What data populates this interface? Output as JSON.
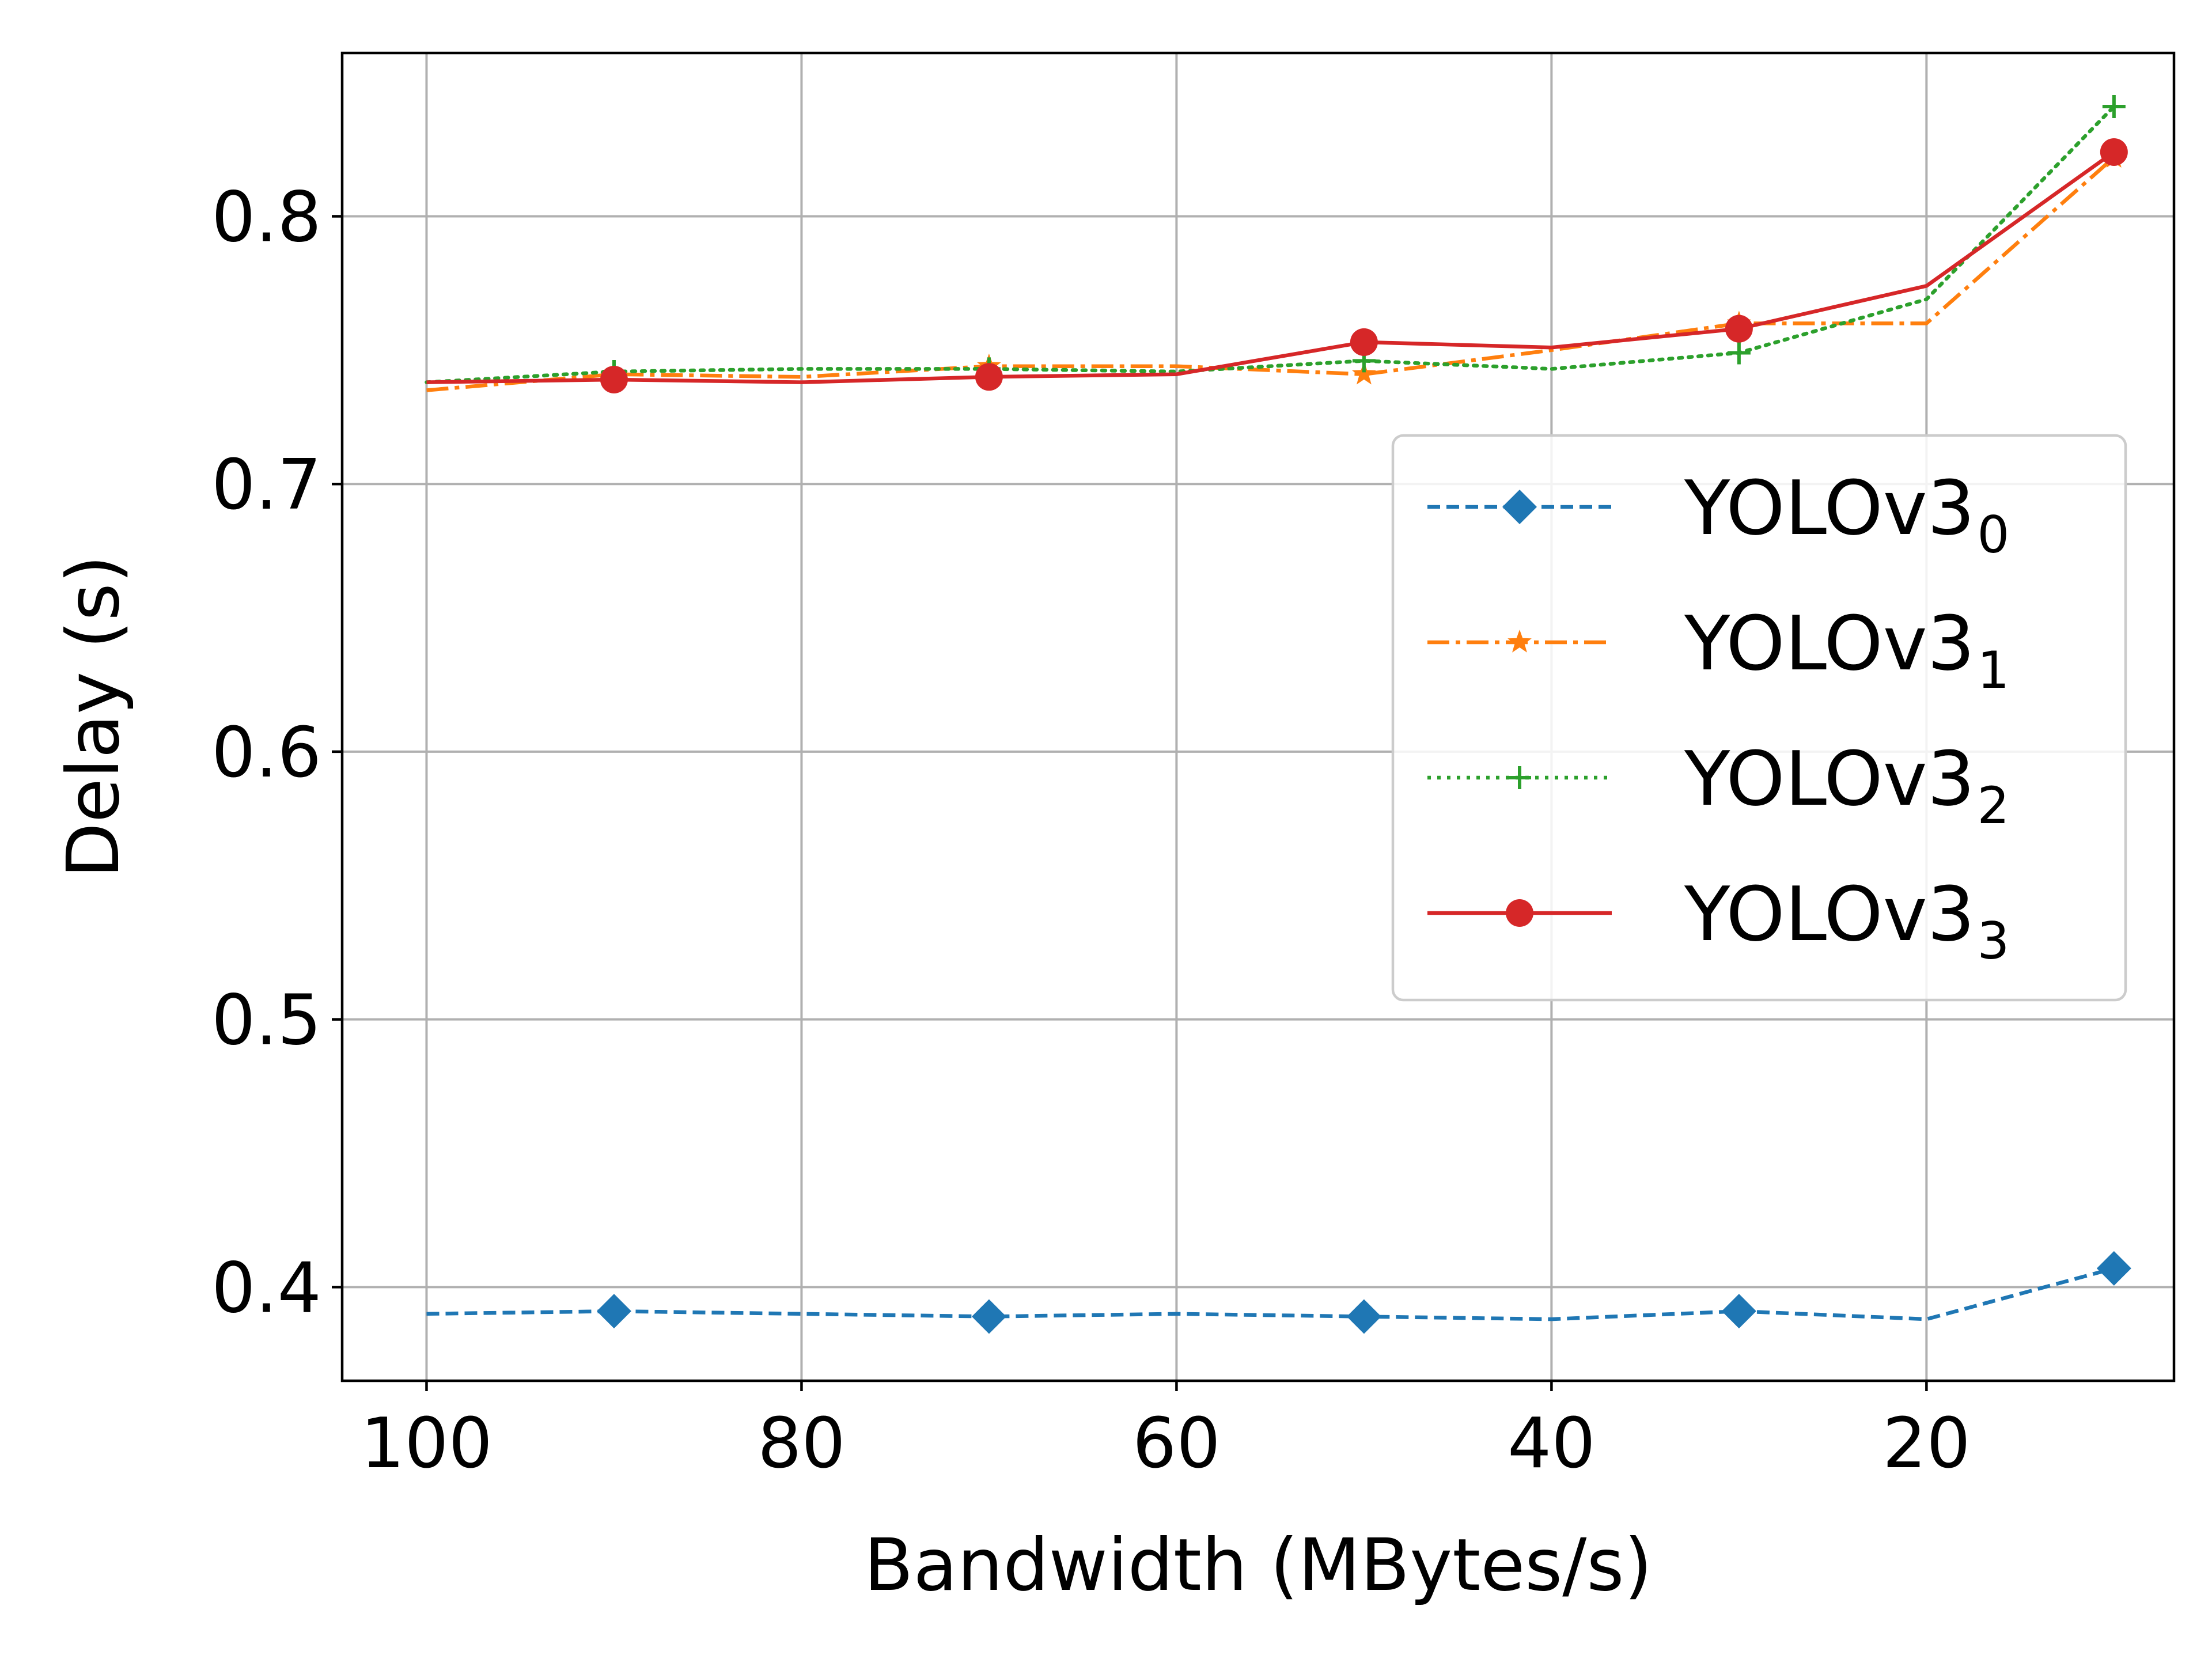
{
  "chart_data": {
    "type": "line",
    "title": "",
    "xlabel": "Bandwidth (MBytes/s)",
    "ylabel": "Delay (s)",
    "xlim": [
      104.5,
      6.8
    ],
    "ylim": [
      0.365,
      0.861
    ],
    "x_inverted": true,
    "xticks": [
      100,
      80,
      60,
      40,
      20
    ],
    "xtick_labels": [
      "100",
      "80",
      "60",
      "40",
      "20"
    ],
    "yticks": [
      0.4,
      0.5,
      0.6,
      0.7,
      0.8
    ],
    "ytick_labels": [
      "0.4",
      "0.5",
      "0.6",
      "0.7",
      "0.8"
    ],
    "grid": true,
    "legend_position": "center-right",
    "x": [
      100,
      90,
      80,
      70,
      60,
      50,
      40,
      30,
      20,
      10
    ],
    "series": [
      {
        "name": "YOLOv3",
        "subscript": "0",
        "color": "#1f77b4",
        "line_style": "dashed",
        "marker": "diamond",
        "marker_every": 2,
        "values": [
          0.39,
          0.391,
          0.39,
          0.389,
          0.39,
          0.389,
          0.388,
          0.391,
          0.388,
          0.407
        ]
      },
      {
        "name": "YOLOv3",
        "subscript": "1",
        "color": "#ff7f0e",
        "line_style": "dashdot",
        "marker": "star",
        "marker_every": 2,
        "values": [
          0.735,
          0.741,
          0.74,
          0.744,
          0.744,
          0.741,
          0.75,
          0.76,
          0.76,
          0.822
        ]
      },
      {
        "name": "YOLOv3",
        "subscript": "2",
        "color": "#2ca02c",
        "line_style": "dotted",
        "marker": "plus",
        "marker_every": 2,
        "values": [
          0.738,
          0.742,
          0.743,
          0.743,
          0.742,
          0.746,
          0.743,
          0.749,
          0.769,
          0.841
        ]
      },
      {
        "name": "YOLOv3",
        "subscript": "3",
        "color": "#d62728",
        "line_style": "solid",
        "marker": "circle",
        "marker_every": 2,
        "values": [
          0.738,
          0.739,
          0.738,
          0.74,
          0.741,
          0.753,
          0.751,
          0.758,
          0.774,
          0.824
        ]
      }
    ]
  }
}
